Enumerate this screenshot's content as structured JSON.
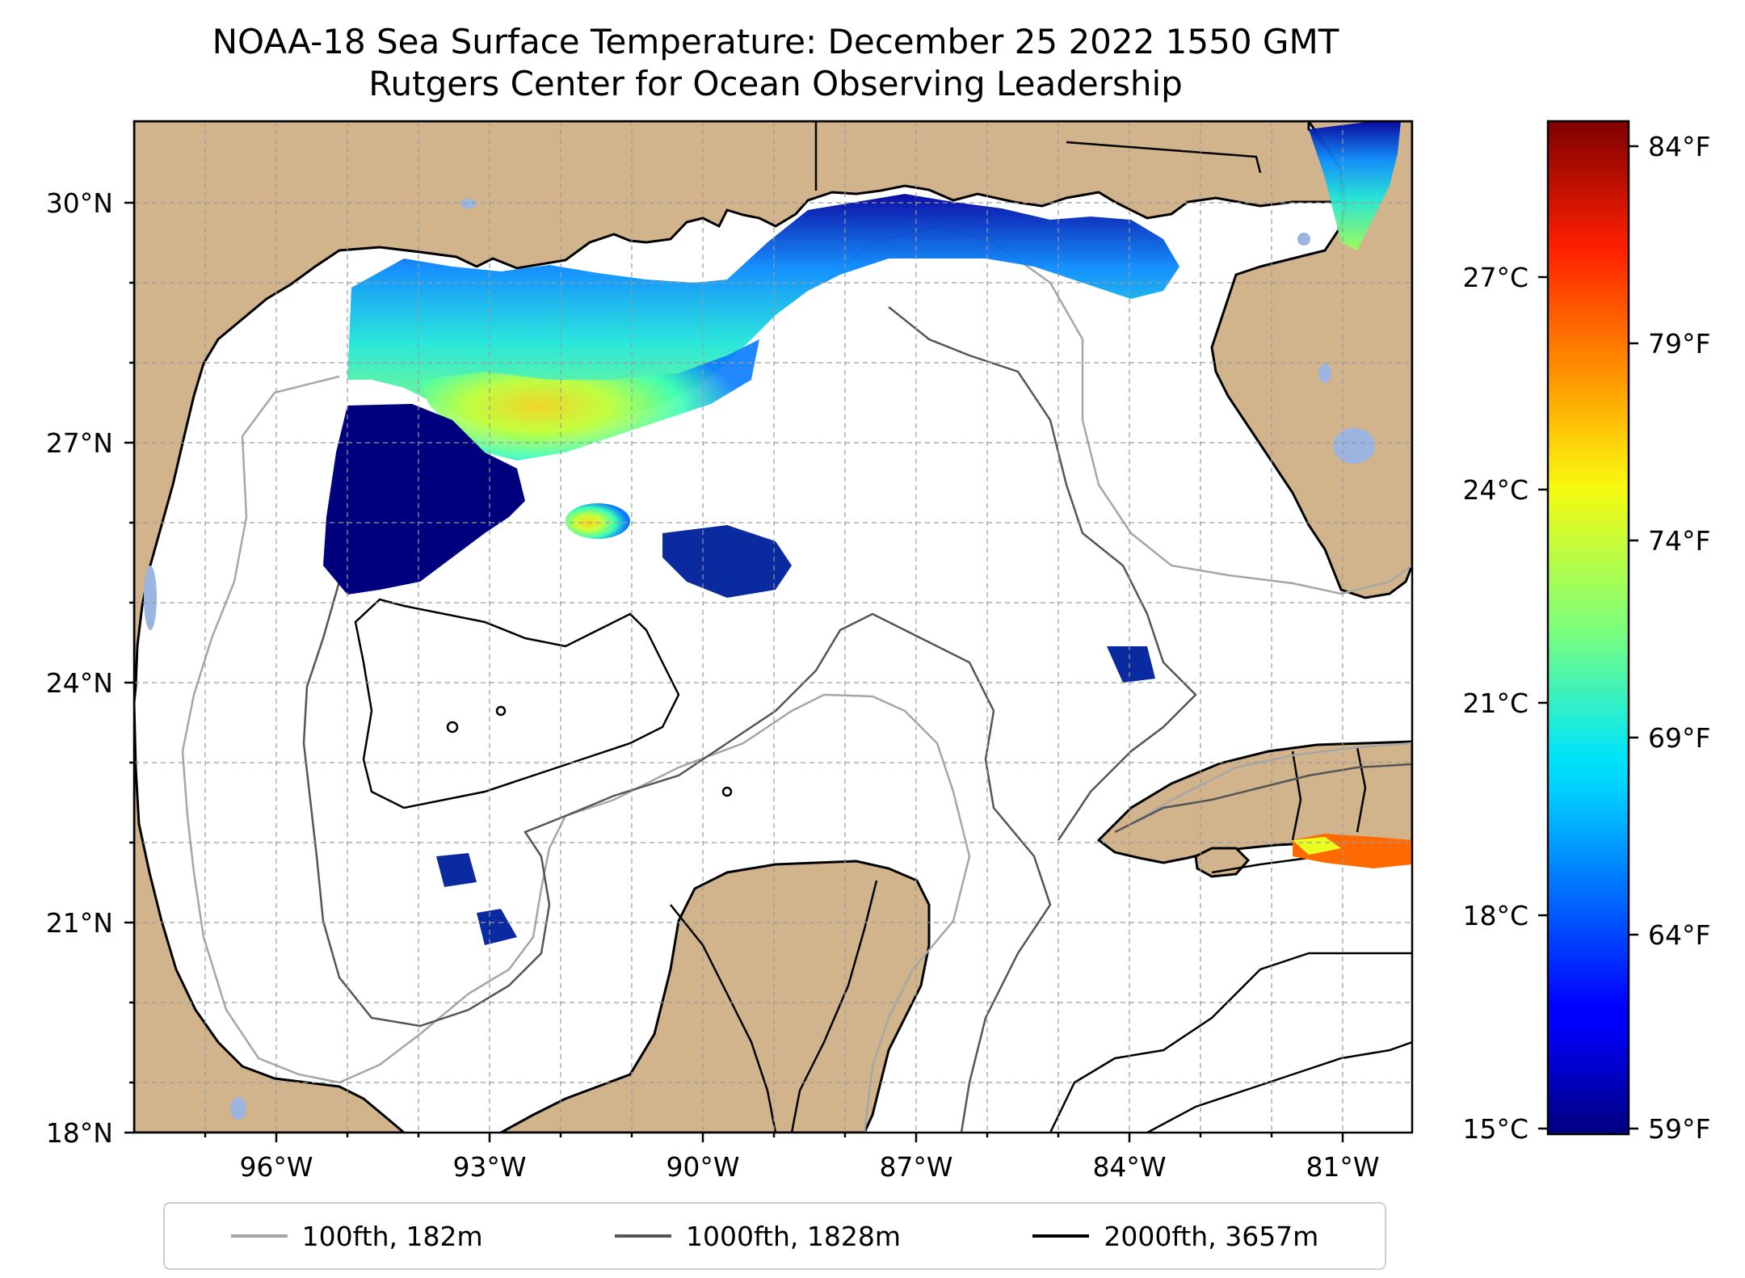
{
  "title": {
    "line1": "NOAA-18 Sea Surface Temperature: December 25 2022 1550 GMT",
    "line2": "Rutgers Center for Ocean Observing Leadership"
  },
  "axes": {
    "lat_ticks": [
      "30°N",
      "27°N",
      "24°N",
      "21°N",
      "18°N"
    ],
    "lon_ticks": [
      "96°W",
      "93°W",
      "90°W",
      "87°W",
      "84°W",
      "81°W"
    ],
    "lat_range": [
      18,
      31.2
    ],
    "lon_range": [
      -98,
      -79.7
    ],
    "grid": true
  },
  "colorbar": {
    "celsius_ticks": [
      "27°C",
      "24°C",
      "21°C",
      "18°C",
      "15°C"
    ],
    "fahrenheit_ticks": [
      "84°F",
      "79°F",
      "74°F",
      "69°F",
      "64°F",
      "59°F"
    ],
    "range_c": [
      15,
      29
    ],
    "colormap": "jet"
  },
  "legend": [
    {
      "label": "100fth, 182m",
      "color": "#a6a6a6"
    },
    {
      "label": "1000fth, 1828m",
      "color": "#555555"
    },
    {
      "label": "2000fth, 3657m",
      "color": "#000000"
    }
  ],
  "colors": {
    "land": "#d2b48c",
    "lake": "#9bb4e0"
  }
}
